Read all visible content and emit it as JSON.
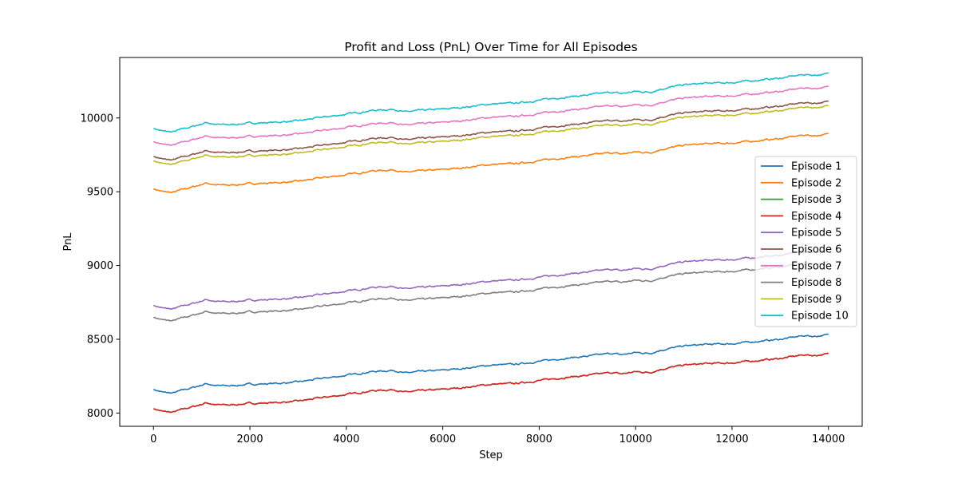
{
  "chart_data": {
    "type": "line",
    "title": "Profit and Loss (PnL) Over Time for All Episodes",
    "xlabel": "Step",
    "ylabel": "PnL",
    "xlim": [
      -700,
      14700
    ],
    "ylim": [
      7910,
      10410
    ],
    "xticks": [
      0,
      2000,
      4000,
      6000,
      8000,
      10000,
      12000,
      14000
    ],
    "yticks": [
      8000,
      8500,
      9000,
      9500,
      10000
    ],
    "grid": false,
    "legend_position": "center-right",
    "series": [
      {
        "name": "Episode 1",
        "color": "#1f77b4",
        "offset": 8160
      },
      {
        "name": "Episode 2",
        "color": "#ff7f0e",
        "offset": 9520
      },
      {
        "name": "Episode 3",
        "color": "#2ca02c",
        "offset": 8030
      },
      {
        "name": "Episode 4",
        "color": "#d62728",
        "offset": 8030
      },
      {
        "name": "Episode 5",
        "color": "#9467bd",
        "offset": 8730
      },
      {
        "name": "Episode 6",
        "color": "#8c564b",
        "offset": 9740
      },
      {
        "name": "Episode 7",
        "color": "#e377c2",
        "offset": 9840
      },
      {
        "name": "Episode 8",
        "color": "#7f7f7f",
        "offset": 8650
      },
      {
        "name": "Episode 9",
        "color": "#bcbd22",
        "offset": 9710
      },
      {
        "name": "Episode 10",
        "color": "#17becf",
        "offset": 9930
      }
    ],
    "shape": [
      [
        0,
        0
      ],
      [
        200,
        -20
      ],
      [
        400,
        -25
      ],
      [
        600,
        -5
      ],
      [
        900,
        20
      ],
      [
        1100,
        40
      ],
      [
        1300,
        25
      ],
      [
        1600,
        25
      ],
      [
        2000,
        35
      ],
      [
        2500,
        40
      ],
      [
        3000,
        50
      ],
      [
        3500,
        75
      ],
      [
        4000,
        95
      ],
      [
        4500,
        120
      ],
      [
        5000,
        130
      ],
      [
        5200,
        110
      ],
      [
        5500,
        120
      ],
      [
        6000,
        130
      ],
      [
        6500,
        145
      ],
      [
        7000,
        165
      ],
      [
        7500,
        170
      ],
      [
        8000,
        190
      ],
      [
        8500,
        210
      ],
      [
        9000,
        225
      ],
      [
        9500,
        245
      ],
      [
        9700,
        235
      ],
      [
        10000,
        250
      ],
      [
        10300,
        245
      ],
      [
        10500,
        265
      ],
      [
        11000,
        295
      ],
      [
        11500,
        305
      ],
      [
        12000,
        310
      ],
      [
        12500,
        325
      ],
      [
        13000,
        340
      ],
      [
        13500,
        365
      ],
      [
        13700,
        360
      ],
      [
        14000,
        370
      ]
    ]
  }
}
